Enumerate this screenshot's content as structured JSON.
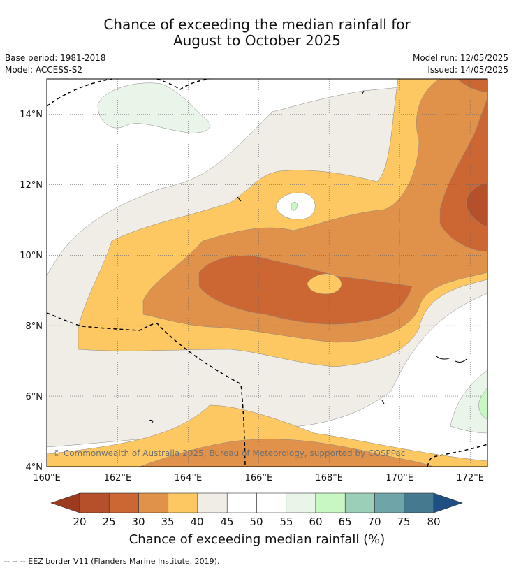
{
  "title": {
    "line1": "Chance of exceeding the median rainfall for",
    "line2": "August to October 2025"
  },
  "meta": {
    "base_period": "Base period: 1981-2018",
    "model": "Model: ACCESS-S2",
    "model_run": "Model run: 12/05/2025",
    "issued": "Issued: 14/05/2025"
  },
  "map": {
    "copyright": "© Commonwealth of Australia 2025, Bureau of Meteorology, supported by COSPPac",
    "lon_labels": [
      "160°E",
      "162°E",
      "164°E",
      "166°E",
      "168°E",
      "170°E",
      "172°E"
    ],
    "lat_labels": [
      "14°N",
      "12°N",
      "10°N",
      "8°N",
      "6°N",
      "4°N"
    ],
    "lon_range": [
      160,
      172.5
    ],
    "lat_range": [
      4,
      15
    ]
  },
  "colorbar": {
    "ticks": [
      "20",
      "25",
      "30",
      "35",
      "40",
      "45",
      "50",
      "55",
      "60",
      "65",
      "70",
      "75",
      "80"
    ],
    "low_color": "#9b3a1f",
    "high_color": "#1f4f82",
    "colors": [
      "#b5502a",
      "#cc6633",
      "#e0914a",
      "#fdc862",
      "#f0ece6",
      "#ffffff",
      "#ffffff",
      "#eaf5ea",
      "#c9f7c4",
      "#9bcfb7",
      "#6fa5a8",
      "#44798f"
    ],
    "label": "Chance of exceeding median rainfall (%)"
  },
  "footer": {
    "eez_note": "--  --  -- EEZ border V11 (Flanders Marine Institute, 2019)."
  }
}
